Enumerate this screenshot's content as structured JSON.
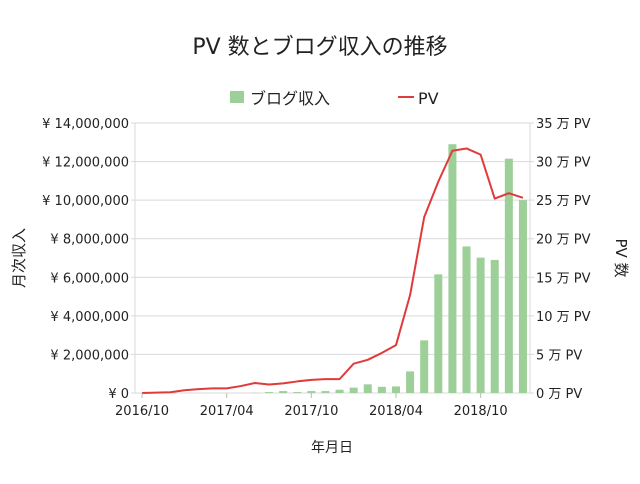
{
  "chart_data": {
    "type": "bar+line",
    "title": "PV 数とブログ収入の推移",
    "xlabel": "年月日",
    "ylabel_left": "月次収入",
    "ylabel_right": "PV 数",
    "legend_position": "top",
    "grid": true,
    "categories": [
      "2016/10",
      "2016/11",
      "2016/12",
      "2017/01",
      "2017/02",
      "2017/03",
      "2017/04",
      "2017/05",
      "2017/06",
      "2017/07",
      "2017/08",
      "2017/09",
      "2017/10",
      "2017/11",
      "2017/12",
      "2018/01",
      "2018/02",
      "2018/03",
      "2018/04",
      "2018/05",
      "2018/06",
      "2018/07",
      "2018/08",
      "2018/09",
      "2018/10",
      "2018/11",
      "2018/12",
      "2019/01"
    ],
    "x_tick_labels": [
      "2016/10",
      "2017/04",
      "2017/10",
      "2018/04",
      "2018/10"
    ],
    "left_axis": {
      "ylim": [
        0,
        14000000
      ],
      "tick_labels": [
        "¥ 0",
        "¥ 2,000,000",
        "¥ 4,000,000",
        "¥ 6,000,000",
        "¥ 8,000,000",
        "¥ 10,000,000",
        "¥ 12,000,000",
        "¥ 14,000,000"
      ]
    },
    "right_axis": {
      "ylim": [
        0,
        35
      ],
      "unit": "万 PV",
      "tick_labels": [
        "0 万 PV",
        "5 万 PV",
        "10 万 PV",
        "15 万 PV",
        "20 万 PV",
        "25 万 PV",
        "30 万 PV",
        "35 万 PV"
      ]
    },
    "series": [
      {
        "name": "ブログ収入",
        "type": "bar",
        "axis": "left",
        "color": "#9dcf98",
        "values": [
          0,
          0,
          0,
          0,
          0,
          0,
          0,
          0,
          10000,
          50000,
          100000,
          50000,
          100000,
          100000,
          170000,
          280000,
          450000,
          320000,
          340000,
          1120000,
          2730000,
          6150000,
          12900000,
          7600000,
          7020000,
          6900000,
          12150000,
          10000000
        ]
      },
      {
        "name": "PV",
        "type": "line",
        "axis": "right",
        "color": "#e03a3a",
        "values": [
          0,
          0.05,
          0.1,
          0.35,
          0.5,
          0.6,
          0.6,
          0.9,
          1.3,
          1.1,
          1.25,
          1.5,
          1.7,
          1.8,
          1.8,
          3.8,
          4.3,
          5.2,
          6.2,
          12.7,
          22.8,
          27.4,
          31.4,
          31.7,
          30.9,
          25.2,
          25.9,
          25.3
        ]
      }
    ]
  }
}
